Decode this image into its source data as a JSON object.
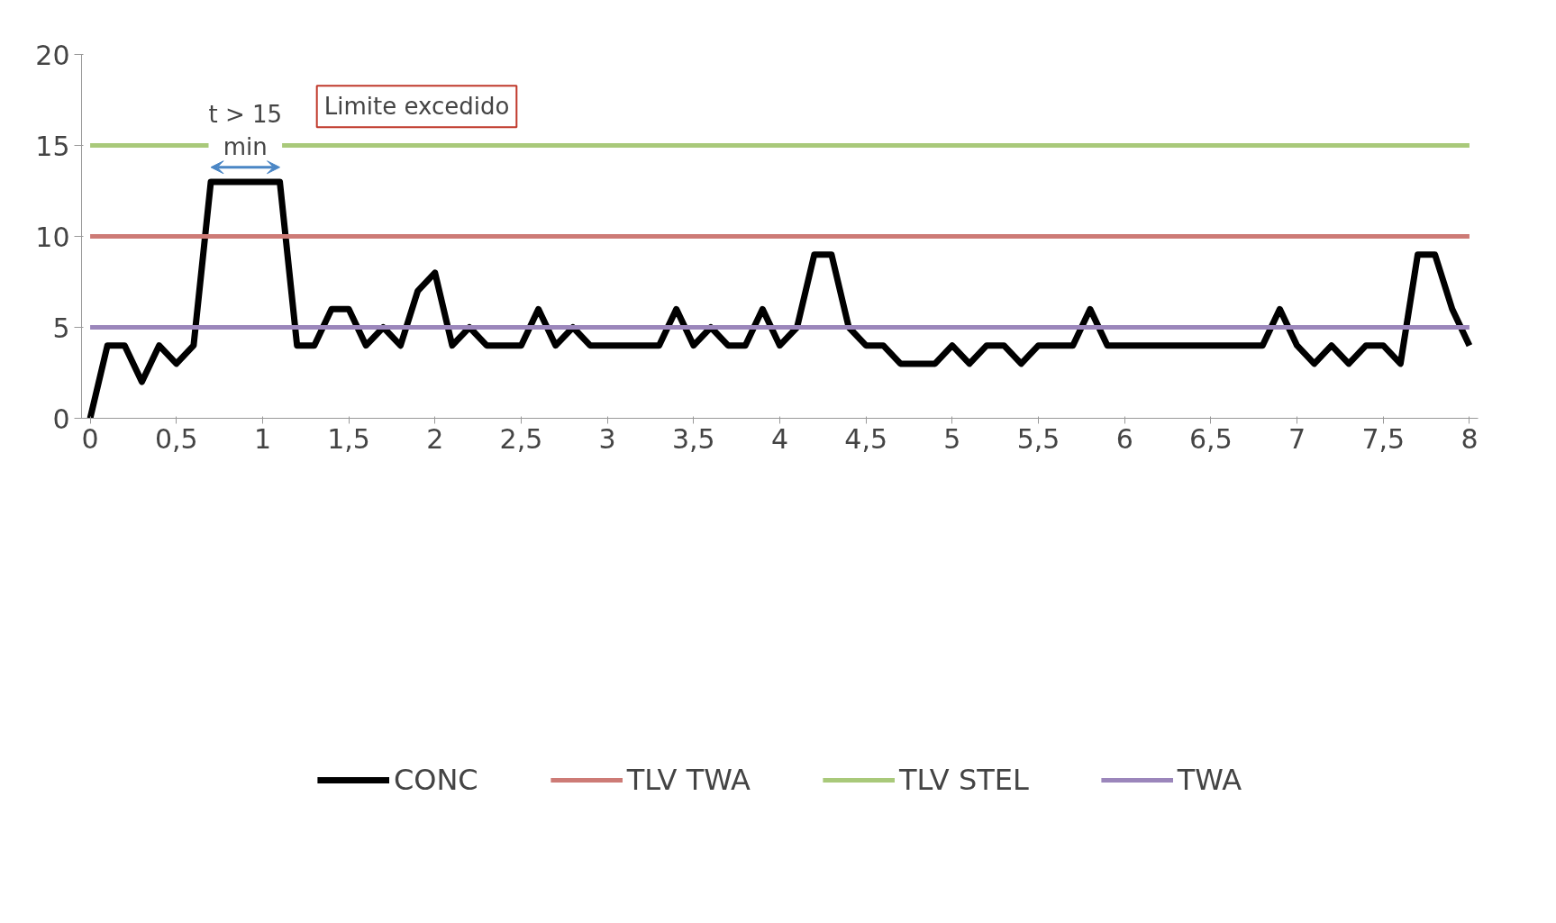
{
  "chart_data": {
    "type": "line",
    "xlim": [
      -0.05,
      8.05
    ],
    "ylim": [
      0,
      20
    ],
    "xticks": [
      0,
      {
        "value": 0.5,
        "label": "0,5"
      },
      1,
      {
        "value": 1.5,
        "label": "1,5"
      },
      2,
      {
        "value": 2.5,
        "label": "2,5"
      },
      3,
      {
        "value": 3.5,
        "label": "3,5"
      },
      4,
      {
        "value": 4.5,
        "label": "4,5"
      },
      5,
      {
        "value": 5.5,
        "label": "5,5"
      },
      6,
      {
        "value": 6.5,
        "label": "6,5"
      },
      7,
      {
        "value": 7.5,
        "label": "7,5"
      },
      8
    ],
    "yticks": [
      0,
      5,
      10,
      15,
      20
    ],
    "grid": false,
    "legend": "bottom",
    "line_style": "solid",
    "marker": "none",
    "series": [
      {
        "name": "CONC",
        "color": "#000000",
        "x": [
          0,
          0.1,
          0.2,
          0.3,
          0.4,
          0.5,
          0.6,
          0.7,
          0.8,
          0.9,
          1.0,
          1.1,
          1.2,
          1.3,
          1.4,
          1.5,
          1.6,
          1.7,
          1.8,
          1.9,
          2.0,
          2.1,
          2.2,
          2.3,
          2.4,
          2.5,
          2.6,
          2.7,
          2.8,
          2.9,
          3.0,
          3.1,
          3.2,
          3.3,
          3.4,
          3.5,
          3.6,
          3.7,
          3.8,
          3.9,
          4.0,
          4.1,
          4.2,
          4.3,
          4.4,
          4.5,
          4.6,
          4.7,
          4.8,
          4.9,
          5.0,
          5.1,
          5.2,
          5.3,
          5.4,
          5.5,
          5.6,
          5.7,
          5.8,
          5.9,
          6.0,
          6.1,
          6.2,
          6.3,
          6.4,
          6.5,
          6.6,
          6.7,
          6.8,
          6.9,
          7.0,
          7.1,
          7.2,
          7.3,
          7.4,
          7.5,
          7.6,
          7.7,
          7.8,
          7.9,
          8.0
        ],
        "values": [
          0,
          4,
          4,
          2,
          4,
          3,
          4,
          13,
          13,
          13,
          13,
          13,
          4,
          4,
          6,
          6,
          4,
          5,
          4,
          7,
          8,
          4,
          5,
          4,
          4,
          4,
          6,
          4,
          5,
          4,
          4,
          4,
          4,
          4,
          6,
          4,
          5,
          4,
          4,
          6,
          4,
          5,
          9,
          9,
          5,
          4,
          4,
          3,
          3,
          3,
          4,
          3,
          4,
          4,
          3,
          4,
          4,
          4,
          6,
          4,
          4,
          4,
          4,
          4,
          4,
          4,
          4,
          4,
          4,
          6,
          4,
          3,
          4,
          3,
          4,
          4,
          3,
          9,
          9,
          6,
          4
        ]
      },
      {
        "name": "TLV TWA",
        "color": "#cd7b76",
        "x": [
          0,
          8
        ],
        "values": [
          10,
          10
        ]
      },
      {
        "name": "TLV STEL",
        "color": "#a9c97a",
        "x": [
          0,
          8
        ],
        "values": [
          15,
          15
        ]
      },
      {
        "name": "TWA",
        "color": "#9b86bb",
        "x": [
          0,
          8
        ],
        "values": [
          5,
          5
        ]
      }
    ],
    "annotations": [
      "Limite excedido",
      "t > 15\nmin"
    ]
  }
}
